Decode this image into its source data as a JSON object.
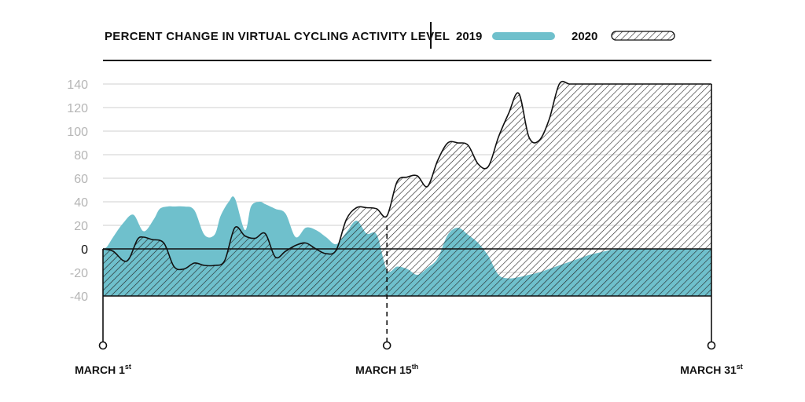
{
  "chart_data": {
    "type": "area",
    "title": "PERCENT CHANGE IN VIRTUAL CYCLING ACTIVITY LEVEL",
    "xlabel": "",
    "ylabel": "",
    "ylim": [
      -40,
      140
    ],
    "yticks": [
      "140",
      "120",
      "100",
      "80",
      "60",
      "40",
      "20",
      "0",
      "-20",
      "-40"
    ],
    "x_labels": [
      {
        "day": 1,
        "text": "MARCH 1",
        "sup": "st"
      },
      {
        "day": 15,
        "text": "MARCH 15",
        "sup": "th"
      },
      {
        "day": 31,
        "text": "MARCH 31",
        "sup": "st"
      }
    ],
    "legend": {
      "placement": "top-right"
    },
    "grid": true,
    "series": [
      {
        "name": "2019",
        "color": "#6fc0cc",
        "fill": "solid",
        "x": [
          1,
          1.2,
          1.5,
          2,
          2.5,
          3,
          3.5,
          3.8,
          4.2,
          4.5,
          5,
          5.5,
          6,
          6.5,
          6.8,
          7.2,
          7.5,
          8,
          8.3,
          8.7,
          9,
          9.5,
          10,
          10.5,
          11,
          11.5,
          12,
          12.5,
          13,
          13.5,
          14,
          14.5,
          15,
          15.5,
          16,
          16.5,
          17,
          17.5,
          18,
          18.5,
          19,
          19.5,
          20,
          20.5,
          21,
          21.5,
          22,
          22.5,
          23,
          23.5,
          24,
          24.5,
          25,
          25.5,
          26,
          26.5,
          27,
          27.5,
          28,
          28.5,
          29,
          29.5,
          30,
          30.5,
          31
        ],
        "y": [
          0,
          2,
          10,
          22,
          29,
          15,
          25,
          34,
          36,
          36,
          36,
          33,
          12,
          12,
          28,
          40,
          43,
          16,
          36,
          40,
          38,
          34,
          30,
          10,
          18,
          16,
          10,
          4,
          14,
          24,
          13,
          12,
          -18,
          -15,
          -17,
          -22,
          -16,
          -8,
          12,
          18,
          12,
          5,
          -6,
          -22,
          -25,
          -24,
          -22,
          -20,
          -17,
          -14,
          -11,
          -8,
          -5,
          -3,
          -1,
          0,
          0,
          0,
          0,
          0,
          0,
          0,
          0,
          0,
          0
        ]
      },
      {
        "name": "2020",
        "color": "#ffffff",
        "stroke": "#111111",
        "fill": "hatched",
        "x": [
          1,
          1.5,
          2,
          2.3,
          2.7,
          3,
          3.4,
          4,
          4.5,
          5,
          5.5,
          6,
          6.5,
          7,
          7.5,
          8,
          8.5,
          9,
          9.5,
          10,
          10.5,
          11,
          11.5,
          12,
          12.5,
          13,
          13.5,
          14,
          14.5,
          15,
          15.5,
          16,
          16.5,
          17,
          17.5,
          18,
          18.5,
          19,
          19.5,
          20,
          20.5,
          21,
          21.5,
          22,
          22.5,
          23,
          23.5,
          24,
          24.5,
          25,
          25.5,
          26,
          26.5,
          27,
          27.5,
          28,
          28.5,
          29,
          29.5,
          30,
          30.5,
          31
        ],
        "y": [
          0,
          -2,
          -10,
          -8,
          8,
          10,
          8,
          5,
          -15,
          -17,
          -12,
          -14,
          -14,
          -10,
          18,
          11,
          9,
          13,
          -7,
          -2,
          3,
          5,
          0,
          -4,
          -1,
          25,
          35,
          35,
          34,
          28,
          57,
          61,
          62,
          53,
          75,
          90,
          90,
          88,
          72,
          70,
          95,
          115,
          132,
          95,
          92,
          110,
          140,
          140,
          140,
          140,
          140,
          140,
          140,
          140,
          140,
          140,
          140,
          140,
          140,
          140,
          140,
          140
        ]
      }
    ]
  }
}
